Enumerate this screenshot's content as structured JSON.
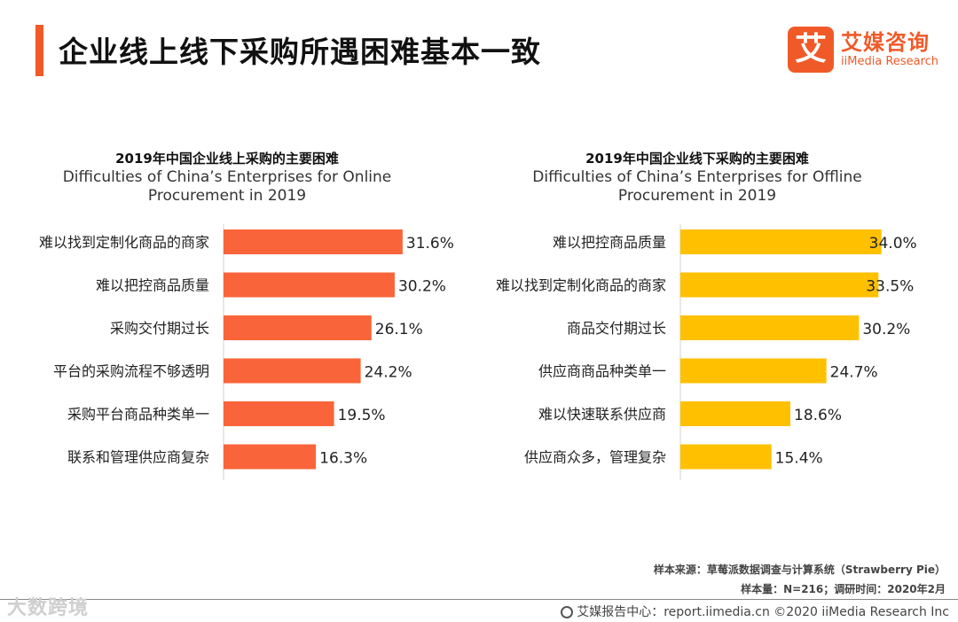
{
  "header": {
    "title": "企业线上线下采购所遇困难基本一致",
    "logo_mark": "艾",
    "logo_cn": "艾媒咨询",
    "logo_en": "iiMedia Research"
  },
  "chart_data": [
    {
      "type": "bar",
      "orientation": "horizontal",
      "title": "2019年中国企业线上采购的主要困难",
      "subtitle_line1": "Difficulties of China’s Enterprises for Online",
      "subtitle_line2": "Procurement in 2019",
      "bar_color": "#f9643a",
      "xlim": [
        0,
        36
      ],
      "categories": [
        "难以找到定制化商品的商家",
        "难以把控商品质量",
        "采购交付期过长",
        "平台的采购流程不够透明",
        "采购平台商品种类单一",
        "联系和管理供应商复杂"
      ],
      "values": [
        31.6,
        30.2,
        26.1,
        24.2,
        19.5,
        16.3
      ],
      "labels": [
        "31.6%",
        "30.2%",
        "26.1%",
        "24.2%",
        "19.5%",
        "16.3%"
      ]
    },
    {
      "type": "bar",
      "orientation": "horizontal",
      "title": "2019年中国企业线下采购的主要困难",
      "subtitle_line1": "Difficulties of China’s Enterprises for Offline",
      "subtitle_line2": "Procurement in 2019",
      "bar_color": "#ffc000",
      "xlim": [
        0,
        36
      ],
      "categories": [
        "难以把控商品质量",
        "难以找到定制化商品的商家",
        "商品交付期过长",
        "供应商商品种类单一",
        "难以快速联系供应商",
        "供应商众多，管理复杂"
      ],
      "values": [
        34.0,
        33.5,
        30.2,
        24.7,
        18.6,
        15.4
      ],
      "labels": [
        "34.0%",
        "33.5%",
        "30.2%",
        "24.7%",
        "18.6%",
        "15.4%"
      ]
    }
  ],
  "source": {
    "line1": "样本来源：草莓派数据调查与计算系统（Strawberry  Pie）",
    "line2": "样本量：N=216；调研时间：2020年2月"
  },
  "watermark": "大数跨境",
  "footer": "艾媒报告中心：report.iimedia.cn  ©2020  iiMedia Research  Inc"
}
